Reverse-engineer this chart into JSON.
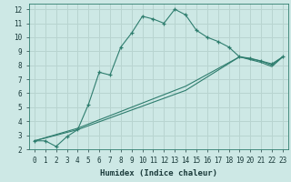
{
  "xlabel": "Humidex (Indice chaleur)",
  "background_color": "#cde8e5",
  "grid_color": "#b8d4d0",
  "line_color": "#2e7d6e",
  "xlim": [
    -0.5,
    23.5
  ],
  "ylim": [
    2,
    12.4
  ],
  "xticks": [
    0,
    1,
    2,
    3,
    4,
    5,
    6,
    7,
    8,
    9,
    10,
    11,
    12,
    13,
    14,
    15,
    16,
    17,
    18,
    19,
    20,
    21,
    22,
    23
  ],
  "yticks": [
    2,
    3,
    4,
    5,
    6,
    7,
    8,
    9,
    10,
    11,
    12
  ],
  "line1_x": [
    0,
    1,
    2,
    3,
    4,
    5,
    6,
    7,
    8,
    9,
    10,
    11,
    12,
    13,
    14,
    15,
    16,
    17,
    18,
    19,
    20,
    21,
    22,
    23
  ],
  "line1_y": [
    2.6,
    2.6,
    2.2,
    2.9,
    3.4,
    5.2,
    7.5,
    7.3,
    9.3,
    10.3,
    11.5,
    11.3,
    11.0,
    12.0,
    11.6,
    10.5,
    10.0,
    9.7,
    9.3,
    8.6,
    8.5,
    8.3,
    8.1,
    8.6
  ],
  "line2_x": [
    0,
    23
  ],
  "line2_y": [
    2.6,
    8.6
  ],
  "line3_x": [
    0,
    23
  ],
  "line3_y": [
    2.6,
    8.6
  ],
  "line2_via_x": [
    0,
    4,
    14,
    19,
    21,
    22,
    23
  ],
  "line2_via_y": [
    2.6,
    3.5,
    6.5,
    8.6,
    8.3,
    8.0,
    8.6
  ],
  "line3_via_x": [
    0,
    4,
    14,
    19,
    21,
    22,
    23
  ],
  "line3_via_y": [
    2.6,
    3.4,
    6.2,
    8.6,
    8.2,
    7.9,
    8.6
  ]
}
